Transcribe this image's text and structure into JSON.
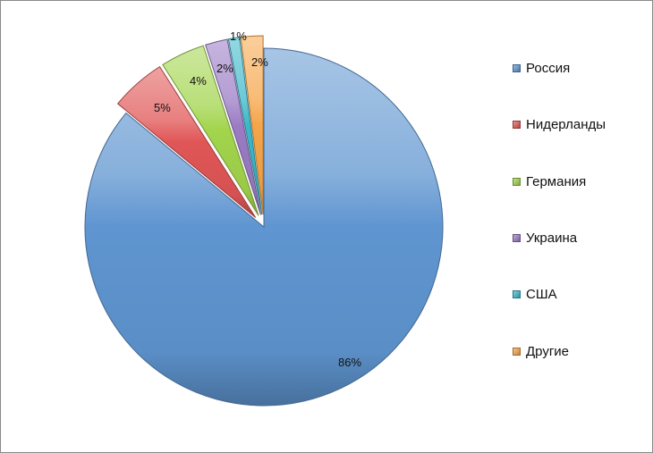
{
  "chart_data": {
    "type": "pie",
    "title": "",
    "legend_position": "right",
    "slices": [
      {
        "label": "Россия",
        "value": 86,
        "display": "86%",
        "color": "#5f95d0",
        "exploded": false
      },
      {
        "label": "Нидерланды",
        "value": 5,
        "display": "5%",
        "color": "#e05656",
        "exploded": true
      },
      {
        "label": "Германия",
        "value": 4,
        "display": "4%",
        "color": "#a2d44c",
        "exploded": true
      },
      {
        "label": "Украина",
        "value": 2,
        "display": "2%",
        "color": "#9a7bc4",
        "exploded": true
      },
      {
        "label": "США",
        "value": 1,
        "display": "1%",
        "color": "#3cb7c9",
        "exploded": true
      },
      {
        "label": "Другие",
        "value": 2,
        "display": "2%",
        "color": "#f5a54a",
        "exploded": true
      }
    ]
  }
}
